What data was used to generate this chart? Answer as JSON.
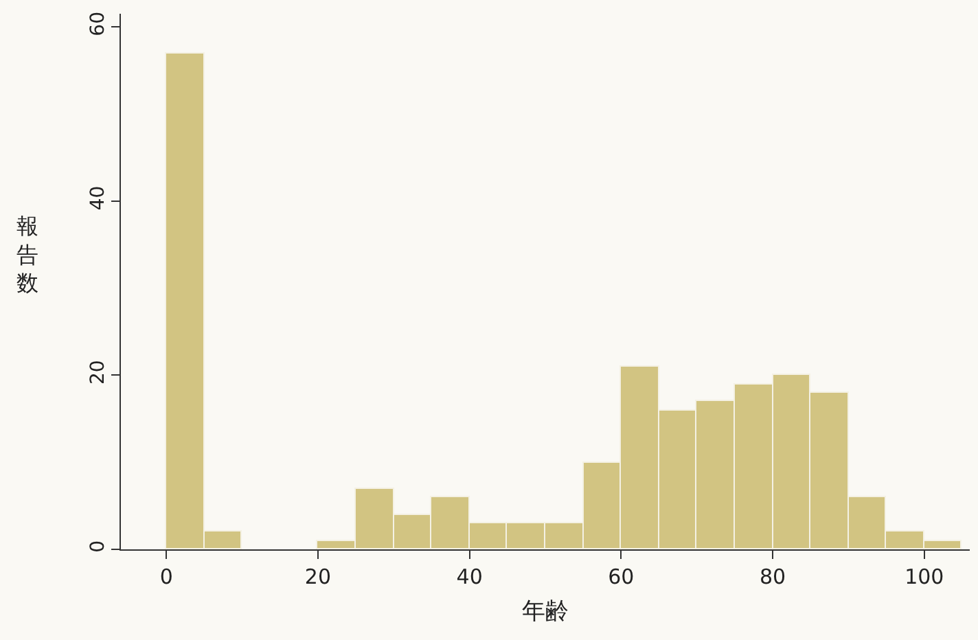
{
  "chart_data": {
    "type": "histogram",
    "xlabel": "年齢",
    "ylabel": "報告数",
    "bins": [
      0,
      5,
      10,
      15,
      20,
      25,
      30,
      35,
      40,
      45,
      50,
      55,
      60,
      65,
      70,
      75,
      80,
      85,
      90,
      95,
      100,
      105
    ],
    "values": [
      57,
      2,
      0,
      0,
      1,
      7,
      4,
      6,
      3,
      3,
      3,
      10,
      21,
      16,
      17,
      19,
      20,
      18,
      6,
      2,
      1
    ],
    "color": "#d2c482",
    "xlim": [
      -6,
      106
    ],
    "xticks": [
      0,
      20,
      40,
      60,
      80,
      100
    ],
    "ylim": [
      0,
      61.5
    ],
    "yticks": [
      0,
      20,
      40,
      60
    ],
    "grid": false
  }
}
